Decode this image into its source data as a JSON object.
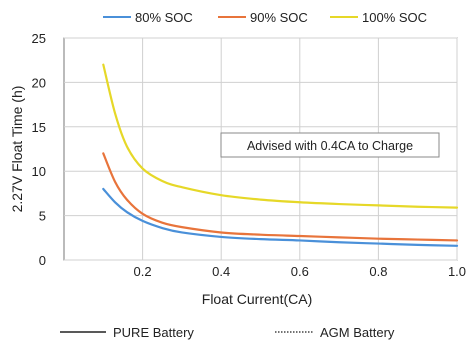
{
  "chart_data": {
    "type": "line",
    "xlabel": "Float Current(CA)",
    "ylabel": "2.27V Float Time (h)",
    "xlim": [
      0.0,
      1.0
    ],
    "ylim": [
      0,
      25
    ],
    "x_ticks": [
      "0.2",
      "0.4",
      "0.6",
      "0.8",
      "1.0"
    ],
    "x_tick_values": [
      0.2,
      0.4,
      0.6,
      0.8,
      1.0
    ],
    "y_ticks": [
      "0",
      "5",
      "10",
      "15",
      "20",
      "25"
    ],
    "y_tick_values": [
      0,
      5,
      10,
      15,
      20,
      25
    ],
    "grid": true,
    "legend_position": "top",
    "x": [
      0.1,
      0.13,
      0.16,
      0.2,
      0.25,
      0.3,
      0.4,
      0.5,
      0.6,
      0.7,
      0.8,
      0.9,
      1.0
    ],
    "series": [
      {
        "name": "80% SOC",
        "color": "#4a90d9",
        "values": [
          8.0,
          6.5,
          5.4,
          4.4,
          3.6,
          3.1,
          2.6,
          2.35,
          2.2,
          2.0,
          1.85,
          1.7,
          1.6
        ]
      },
      {
        "name": "90% SOC",
        "color": "#e8743b",
        "values": [
          12.0,
          8.8,
          6.8,
          5.2,
          4.2,
          3.7,
          3.1,
          2.85,
          2.7,
          2.55,
          2.4,
          2.3,
          2.2
        ]
      },
      {
        "name": "100% SOC",
        "color": "#e6d828",
        "values": [
          22.0,
          16.5,
          12.8,
          10.3,
          8.9,
          8.2,
          7.3,
          6.8,
          6.5,
          6.3,
          6.15,
          6.0,
          5.9
        ]
      }
    ],
    "annotation": "Advised with 0.4CA to Charge",
    "bottom_legend": [
      {
        "label": "PURE Battery",
        "style": "solid"
      },
      {
        "label": "AGM Battery",
        "style": "dotted"
      }
    ]
  }
}
